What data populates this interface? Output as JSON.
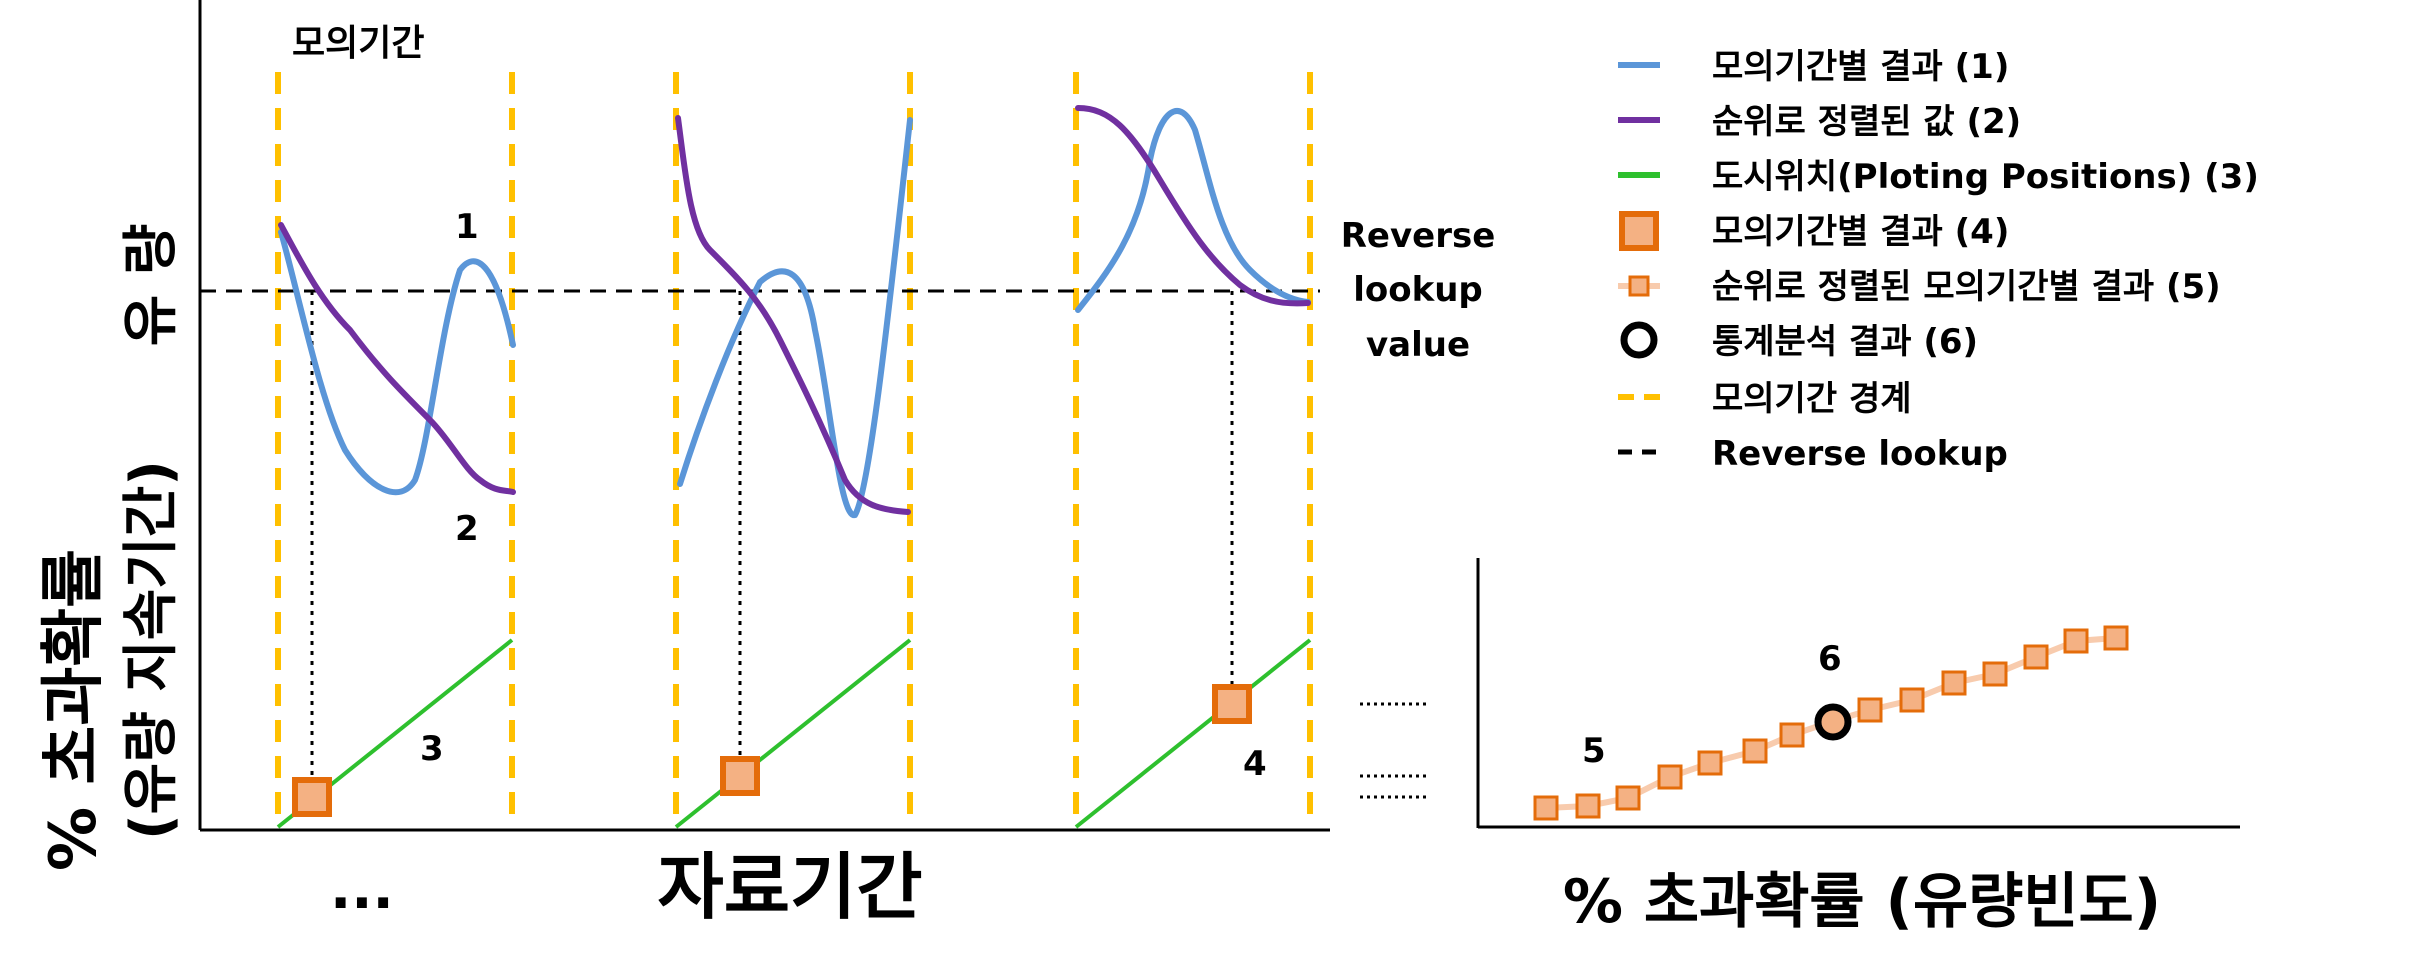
{
  "period_header": "모의기간",
  "y_axis_upper": "유 량",
  "y_axis_lower_line1": "% 초과확률",
  "y_axis_lower_line2": "(유량 지속기간)",
  "x_axis_left": "자료기간",
  "ellipsis": "...",
  "x_axis_right": "% 초과확률 (유량빈도)",
  "reverse_lookup_label": [
    "Reverse",
    "lookup",
    "value"
  ],
  "markers": {
    "m1": "1",
    "m2": "2",
    "m3": "3",
    "m4": "4",
    "m5": "5",
    "m6": "6"
  },
  "legend": [
    {
      "label": "모의기간별 결과 (1)",
      "color": "#5b96d8",
      "kind": "line"
    },
    {
      "label": "순위로 정렬된 값 (2)",
      "color": "#7030a0",
      "kind": "line"
    },
    {
      "label": "도시위치(Ploting Positions) (3)",
      "color": "#2ec02e",
      "kind": "line"
    },
    {
      "label": "모의기간별 결과 (4)",
      "color": "#e46c0a",
      "kind": "big-square"
    },
    {
      "label": "순위로 정렬된 모의기간별 결과 (5)",
      "color": "#f4b183",
      "kind": "small-square-line"
    },
    {
      "label": "통계분석 결과 (6)",
      "color": "#000000",
      "kind": "circle"
    },
    {
      "label": "모의기간 경계",
      "color": "#ffc000",
      "kind": "dashed"
    },
    {
      "label": "Reverse lookup",
      "color": "#000000",
      "kind": "dashed-black"
    }
  ]
}
